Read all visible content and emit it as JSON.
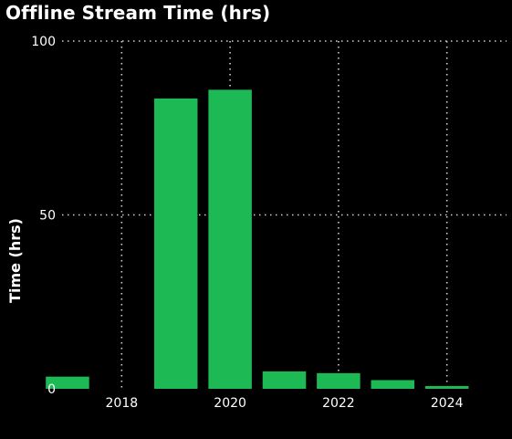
{
  "chart_data": {
    "type": "bar",
    "title": "Offline Stream Time (hrs)",
    "xlabel": "",
    "ylabel": "Time (hrs)",
    "x": [
      2017,
      2018,
      2019,
      2020,
      2021,
      2022,
      2023,
      2024
    ],
    "values": [
      3.5,
      0,
      83.5,
      86,
      5,
      4.5,
      2.5,
      0.8
    ],
    "xlim": [
      2016.9,
      2025.1
    ],
    "ylim": [
      0,
      100
    ],
    "xticks": [
      2018,
      2020,
      2022,
      2024
    ],
    "yticks": [
      0,
      50,
      100
    ],
    "grid": true,
    "legend": "none",
    "colors": {
      "bar": "#1db954",
      "background": "#000000",
      "text": "#ffffff",
      "grid": "#cfcfcf"
    }
  }
}
